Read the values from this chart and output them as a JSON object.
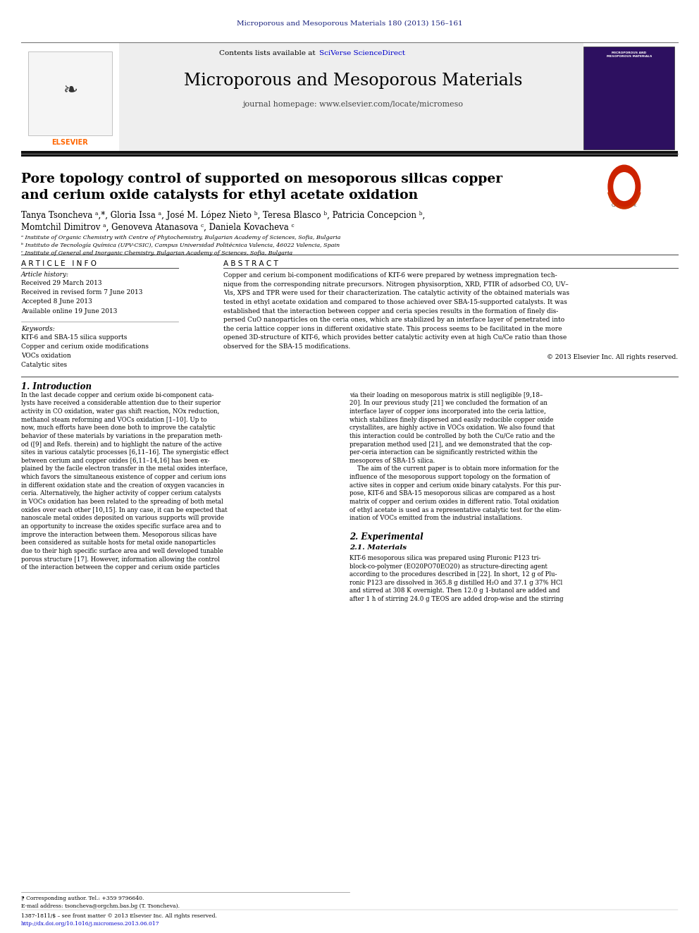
{
  "page_width": 9.92,
  "page_height": 13.23,
  "background_color": "#ffffff",
  "journal_ref_text": "Microporous and Mesoporous Materials 180 (2013) 156–161",
  "journal_ref_color": "#1a237e",
  "journal_ref_fontsize": 7.5,
  "contents_text": "Contents lists available at ",
  "sciverse_text": "SciVerse ScienceDirect",
  "sciverse_color": "#0000cc",
  "journal_name": "Microporous and Mesoporous Materials",
  "journal_homepage": "journal homepage: www.elsevier.com/locate/micromeso",
  "article_title": "Pore topology control of supported on mesoporous silicas copper\nand cerium oxide catalysts for ethyl acetate oxidation",
  "authors_line1": "Tanya Tsoncheva ᵃ,*, Gloria Issa ᵃ, José M. López Nieto ᵇ, Teresa Blasco ᵇ, Patricia Concepcion ᵇ,",
  "authors_line2": "Momtchil Dimitrov ᵃ, Genoveva Atanasova ᶜ, Daniela Kovacheva ᶜ",
  "affil_a": "ᵃ Institute of Organic Chemistry with Centre of Phytochemistry, Bulgarian Academy of Sciences, Sofia, Bulgaria",
  "affil_b": "ᵇ Instituto de Tecnología Química (UPV-CSIC), Campus Universidad Politécnica Valencia, 46022 Valencia, Spain",
  "affil_c": "ᶜ Institute of General and Inorganic Chemistry, Bulgarian Academy of Sciences, Sofia, Bulgaria",
  "article_info_title": "A R T I C L E   I N F O",
  "article_history_label": "Article history:",
  "received1": "Received 29 March 2013",
  "received2": "Received in revised form 7 June 2013",
  "accepted": "Accepted 8 June 2013",
  "available": "Available online 19 June 2013",
  "keywords_label": "Keywords:",
  "kw1": "KIT-6 and SBA-15 silica supports",
  "kw2": "Copper and cerium oxide modifications",
  "kw3": "VOCs oxidation",
  "kw4": "Catalytic sites",
  "abstract_title": "A B S T R A C T",
  "abstract_text": "Copper and cerium bi-component modifications of KIT-6 were prepared by wetness impregnation tech-\nnique from the corresponding nitrate precursors. Nitrogen physisorption, XRD, FTIR of adsorbed CO, UV–\nVis, XPS and TPR were used for their characterization. The catalytic activity of the obtained materials was\ntested in ethyl acetate oxidation and compared to those achieved over SBA-15-supported catalysts. It was\nestablished that the interaction between copper and ceria species results in the formation of finely dis-\npersed CuO nanoparticles on the ceria ones, which are stabilized by an interface layer of penetrated into\nthe ceria lattice copper ions in different oxidative state. This process seems to be facilitated in the more\nopened 3D-structure of KIT-6, which provides better catalytic activity even at high Cu/Ce ratio than those\nobserved for the SBA-15 modifications.",
  "copyright_text": "© 2013 Elsevier Inc. All rights reserved.",
  "intro_title": "1. Introduction",
  "intro_col1": "In the last decade copper and cerium oxide bi-component cata-\nlysts have received a considerable attention due to their superior\nactivity in CO oxidation, water gas shift reaction, NOx reduction,\nmethanol steam reforming and VOCs oxidation [1–10]. Up to\nnow, much efforts have been done both to improve the catalytic\nbehavior of these materials by variations in the preparation meth-\nod ([9] and Refs. therein) and to highlight the nature of the active\nsites in various catalytic processes [6,11–16]. The synergistic effect\nbetween cerium and copper oxides [6,11–14,16] has been ex-\nplained by the facile electron transfer in the metal oxides interface,\nwhich favors the simultaneous existence of copper and cerium ions\nin different oxidation state and the creation of oxygen vacancies in\nceria. Alternatively, the higher activity of copper cerium catalysts\nin VOCs oxidation has been related to the spreading of both metal\noxides over each other [10,15]. In any case, it can be expected that\nnanoscale metal oxides deposited on various supports will provide\nan opportunity to increase the oxides specific surface area and to\nimprove the interaction between them. Mesoporous silicas have\nbeen considered as suitable hosts for metal oxide nanoparticles\ndue to their high specific surface area and well developed tunable\nporous structure [17]. However, information allowing the control\nof the interaction between the copper and cerium oxide particles",
  "intro_col2": "via their loading on mesoporous matrix is still negligible [9,18–\n20]. In our previous study [21] we concluded the formation of an\ninterface layer of copper ions incorporated into the ceria lattice,\nwhich stabilizes finely dispersed and easily reducible copper oxide\ncrystallites, are highly active in VOCs oxidation. We also found that\nthis interaction could be controlled by both the Cu/Ce ratio and the\npreparation method used [21], and we demonstrated that the cop-\nper-ceria interaction can be significantly restricted within the\nmesopores of SBA-15 silica.\n    The aim of the current paper is to obtain more information for the\ninfluence of the mesoporous support topology on the formation of\nactive sites in copper and cerium oxide binary catalysts. For this pur-\npose, KIT-6 and SBA-15 mesoporous silicas are compared as a host\nmatrix of copper and cerium oxides in different ratio. Total oxidation\nof ethyl acetate is used as a representative catalytic test for the elim-\nination of VOCs emitted from the industrial installations.",
  "experimental_title": "2. Experimental",
  "section21_title": "2.1. Materials",
  "section21_text": "KIT-6 mesoporous silica was prepared using Pluronic P123 tri-\nblock-co-polymer (EO20PO70EO20) as structure-directing agent\naccording to the procedures described in [22]. In short, 12 g of Plu-\nronic P123 are dissolved in 365.8 g distilled H₂O and 37.1 g 37% HCl\nand stirred at 308 K overnight. Then 12.0 g 1-butanol are added and\nafter 1 h of stirring 24.0 g TEOS are added drop-wise and the stirring",
  "footnote_star": "⁋ Corresponding author. Tel.: +359 9796640.",
  "footnote_email": "E-mail address: tsoncheva@orgchm.bas.bg (T. Tsoncheva).",
  "footnote_issn": "1387-1811/$ – see front matter © 2013 Elsevier Inc. All rights reserved.",
  "footnote_doi": "http://dx.doi.org/10.1016/j.micromeso.2013.06.017",
  "footnote_color": "#0000cc",
  "elsevier_color": "#ff6600"
}
